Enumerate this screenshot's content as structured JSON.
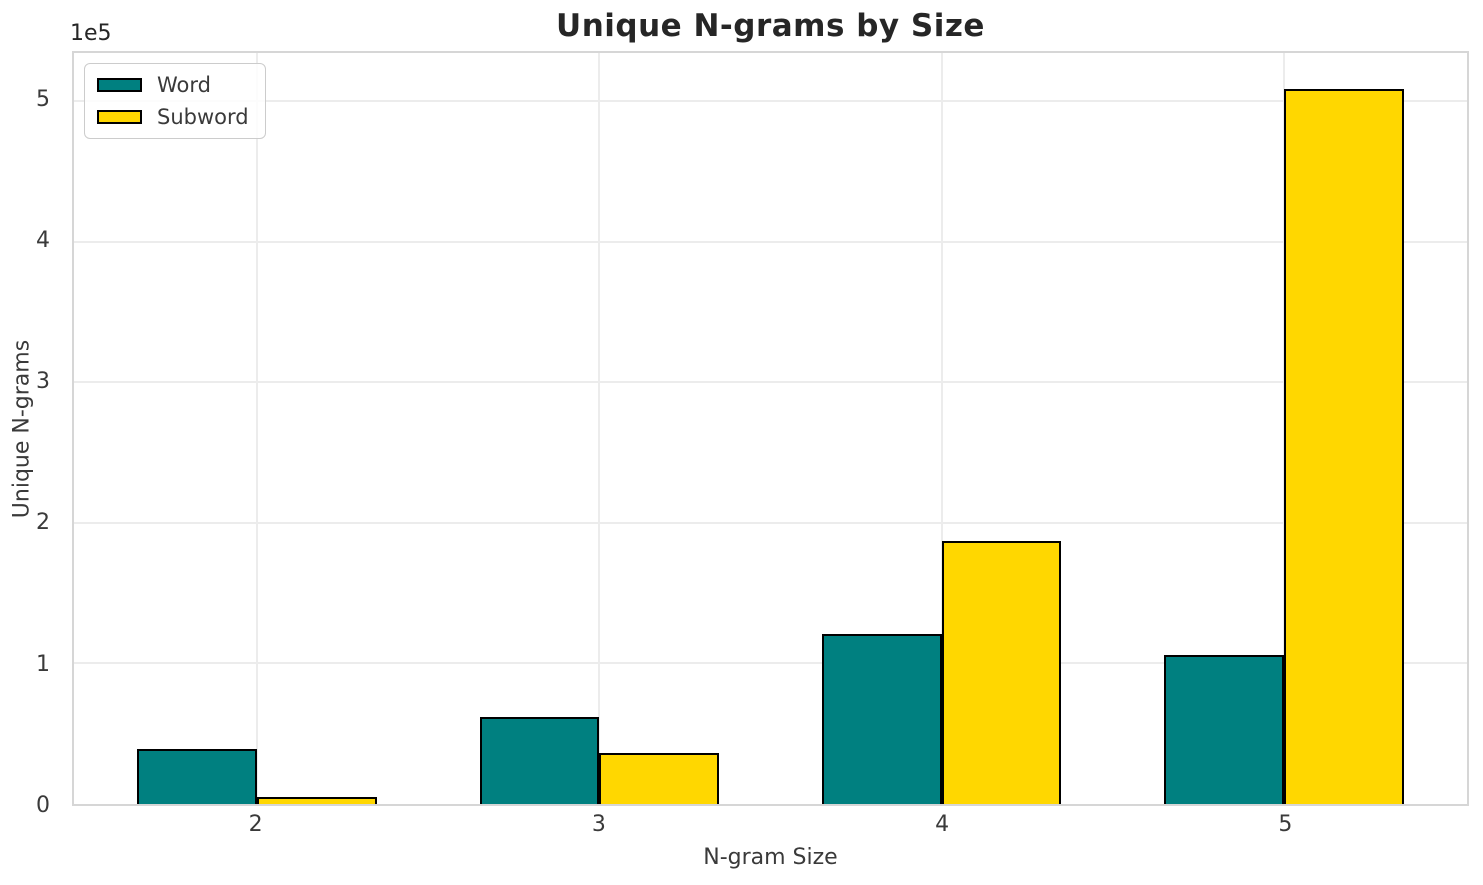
{
  "chart_data": {
    "type": "bar",
    "title": "Unique N-grams by Size",
    "xlabel": "N-gram Size",
    "ylabel": "Unique N-grams",
    "offset_text": "1e5",
    "categories": [
      "2",
      "3",
      "4",
      "5"
    ],
    "x": [
      2,
      3,
      4,
      5
    ],
    "series": [
      {
        "name": "Word",
        "color": "#008080",
        "values": [
          39000,
          62000,
          121000,
          106000
        ]
      },
      {
        "name": "Subword",
        "color": "#FFD700",
        "values": [
          5000,
          36000,
          187000,
          509000
        ]
      }
    ],
    "bar_width_units": 0.35,
    "bar_edge_color": "#000000",
    "xlim": [
      1.465,
      5.535
    ],
    "ylim": [
      0,
      534450
    ],
    "y_ticks": [
      {
        "label": "0",
        "value": 0
      },
      {
        "label": "1",
        "value": 100000
      },
      {
        "label": "2",
        "value": 200000
      },
      {
        "label": "3",
        "value": 300000
      },
      {
        "label": "4",
        "value": 400000
      },
      {
        "label": "5",
        "value": 500000
      }
    ],
    "grid": true,
    "legend": {
      "position": "upper-left",
      "entries": [
        "Word",
        "Subword"
      ]
    },
    "colors": {
      "grid": "#ececec",
      "spine": "#d6d6d6",
      "title_text": "#262626",
      "tick_text": "#3a3a3a",
      "background": "#ffffff"
    }
  }
}
